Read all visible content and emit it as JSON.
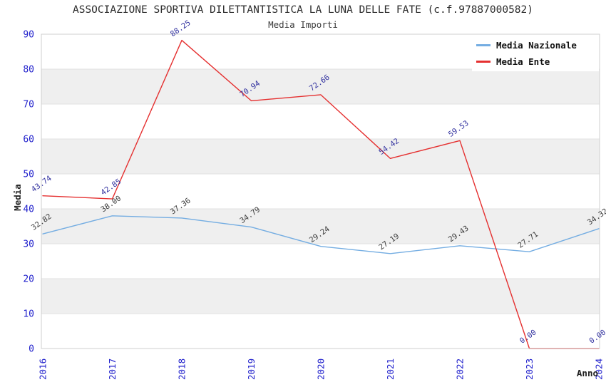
{
  "title": "ASSOCIAZIONE SPORTIVA DILETTANTISTICA LA LUNA DELLE FATE (c.f.97887000582)",
  "subtitle": "Media Importi",
  "chart_data": {
    "type": "line",
    "x": [
      "2016",
      "2017",
      "2018",
      "2019",
      "2020",
      "2021",
      "2022",
      "2023",
      "2024"
    ],
    "series": [
      {
        "name": "Media Nazionale",
        "color": "#74ade2",
        "label_color": "#3c3c3c",
        "values": [
          32.82,
          38.0,
          37.36,
          34.79,
          29.24,
          27.19,
          29.43,
          27.71,
          34.32
        ]
      },
      {
        "name": "Media Ente",
        "color": "#e53030",
        "label_color": "#3333a0",
        "values": [
          43.74,
          42.85,
          88.25,
          70.94,
          72.66,
          54.42,
          59.53,
          0.0,
          0.0
        ]
      }
    ],
    "xlabel": "Anno",
    "ylabel": "Media",
    "ylim": [
      0,
      90
    ],
    "ytick_step": 10,
    "yticks": [
      "0",
      "10",
      "20",
      "30",
      "40",
      "50",
      "60",
      "70",
      "80",
      "90"
    ],
    "grid": true,
    "band_color": "#efefef",
    "grid_color": "#e2e2e2",
    "frame_color": "#cfcfcf",
    "tick_label_color": "#2121cc",
    "legend_position": "top-right",
    "value_label_rotation_deg": -35,
    "value_label_decimals": 2
  }
}
